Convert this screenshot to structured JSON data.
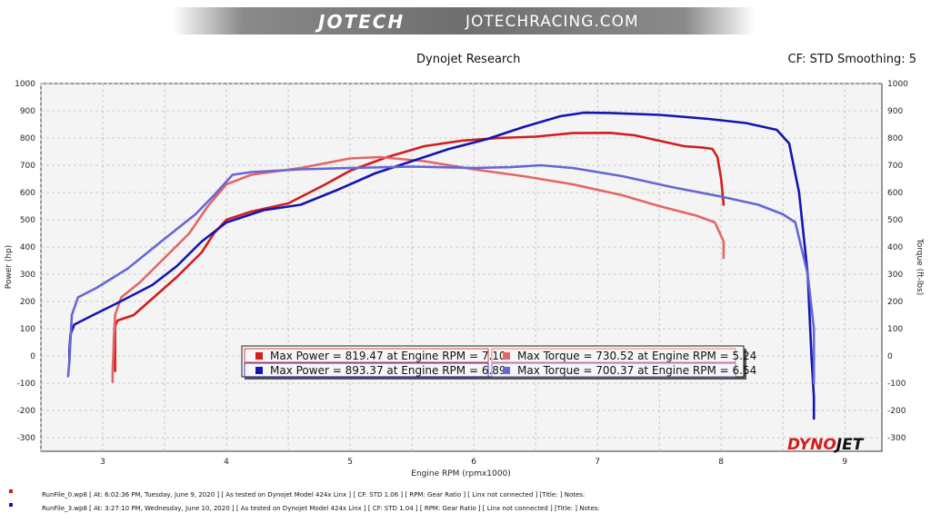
{
  "banner": {
    "logo": "JOTECH",
    "url": "JOTECHRACING.COM"
  },
  "header": {
    "title": "Dynojet Research",
    "cf": "CF: STD Smoothing: 5"
  },
  "brand_mark": {
    "a": "DYNO",
    "b": "JET"
  },
  "colors": {
    "power_0": "#d21d1d",
    "power_3": "#1414b4",
    "torque_0": "#e46666",
    "torque_3": "#6666d6"
  },
  "legend": [
    {
      "text": "Max Power = 819.47 at Engine RPM = 7.10",
      "color": "#d21d1d"
    },
    {
      "text": "Max Torque = 730.52 at Engine RPM = 5.24",
      "color": "#e46666"
    },
    {
      "text": "Max Power = 893.37 at Engine RPM = 6.89",
      "color": "#1414b4"
    },
    {
      "text": "Max Torque = 700.37 at Engine RPM = 6.54",
      "color": "#6666d6"
    }
  ],
  "footer": [
    {
      "text": "RunFile_0.wp8  [ At:  6:02:36 PM, Tuesday, June 9, 2020 ]  [ As tested on Dynojet Model 424x Linx ]  [ CF: STD 1.06 ]  [ RPM: Gear Ratio ]  [ Linx not connected ]  [Title: ]   Notes:",
      "color": "#d21d1d"
    },
    {
      "text": "RunFile_3.wp8  [ At:  3:27:10 PM, Wednesday, June 10, 2020 ]  [ As tested on Dynojet Model 424x Linx ]  [ CF: STD 1.04 ]  [ RPM: Gear Ratio ]  [ Linx not connected ]  [Title: ]   Notes:",
      "color": "#1414b4"
    }
  ],
  "chart_data": {
    "type": "line",
    "xlabel": "Engine RPM (rpmx1000)",
    "ylabel": "Power (hp)",
    "y2label": "Torque (ft-lbs)",
    "xlim": [
      2.5,
      9.3
    ],
    "ylim": [
      -350,
      1000
    ],
    "xticks": [
      3,
      4,
      5,
      6,
      7,
      8,
      9
    ],
    "yticks": [
      -300,
      -200,
      -100,
      0,
      100,
      200,
      300,
      400,
      500,
      600,
      700,
      800,
      900,
      1000
    ],
    "grid": true,
    "series": [
      {
        "key": "power_0",
        "points": [
          [
            3.1,
            -55
          ],
          [
            3.1,
            -30
          ],
          [
            3.1,
            60
          ],
          [
            3.1,
            110
          ],
          [
            3.12,
            130
          ],
          [
            3.25,
            150
          ],
          [
            3.4,
            210
          ],
          [
            3.6,
            290
          ],
          [
            3.8,
            380
          ],
          [
            3.9,
            450
          ],
          [
            4.0,
            500
          ],
          [
            4.2,
            530
          ],
          [
            4.5,
            560
          ],
          [
            4.8,
            630
          ],
          [
            5.0,
            680
          ],
          [
            5.3,
            730
          ],
          [
            5.6,
            770
          ],
          [
            5.9,
            790
          ],
          [
            6.2,
            800
          ],
          [
            6.5,
            805
          ],
          [
            6.8,
            818
          ],
          [
            7.1,
            819
          ],
          [
            7.3,
            810
          ],
          [
            7.5,
            790
          ],
          [
            7.7,
            770
          ],
          [
            7.85,
            765
          ],
          [
            7.93,
            760
          ],
          [
            7.97,
            730
          ],
          [
            8.0,
            650
          ],
          [
            8.02,
            555
          ]
        ]
      },
      {
        "key": "torque_0",
        "points": [
          [
            3.08,
            -95
          ],
          [
            3.08,
            -60
          ],
          [
            3.09,
            70
          ],
          [
            3.1,
            150
          ],
          [
            3.15,
            215
          ],
          [
            3.3,
            270
          ],
          [
            3.5,
            360
          ],
          [
            3.7,
            450
          ],
          [
            3.85,
            550
          ],
          [
            4.0,
            630
          ],
          [
            4.2,
            665
          ],
          [
            4.6,
            690
          ],
          [
            5.0,
            725
          ],
          [
            5.24,
            730
          ],
          [
            5.6,
            715
          ],
          [
            6.0,
            685
          ],
          [
            6.4,
            660
          ],
          [
            6.8,
            630
          ],
          [
            7.2,
            590
          ],
          [
            7.5,
            550
          ],
          [
            7.8,
            515
          ],
          [
            7.95,
            490
          ],
          [
            8.02,
            420
          ],
          [
            8.02,
            360
          ]
        ]
      },
      {
        "key": "power_3",
        "points": [
          [
            2.73,
            -25
          ],
          [
            2.73,
            20
          ],
          [
            2.74,
            80
          ],
          [
            2.77,
            115
          ],
          [
            2.9,
            145
          ],
          [
            3.1,
            190
          ],
          [
            3.4,
            260
          ],
          [
            3.6,
            330
          ],
          [
            3.8,
            420
          ],
          [
            4.0,
            490
          ],
          [
            4.3,
            535
          ],
          [
            4.6,
            555
          ],
          [
            4.9,
            610
          ],
          [
            5.2,
            670
          ],
          [
            5.5,
            715
          ],
          [
            5.8,
            760
          ],
          [
            6.1,
            795
          ],
          [
            6.4,
            840
          ],
          [
            6.7,
            880
          ],
          [
            6.89,
            893
          ],
          [
            7.1,
            892
          ],
          [
            7.5,
            885
          ],
          [
            7.9,
            870
          ],
          [
            8.2,
            855
          ],
          [
            8.45,
            830
          ],
          [
            8.55,
            780
          ],
          [
            8.63,
            600
          ],
          [
            8.7,
            300
          ],
          [
            8.73,
            0
          ],
          [
            8.75,
            -150
          ],
          [
            8.75,
            -230
          ]
        ]
      },
      {
        "key": "torque_3",
        "points": [
          [
            2.72,
            -75
          ],
          [
            2.73,
            -20
          ],
          [
            2.75,
            150
          ],
          [
            2.8,
            215
          ],
          [
            2.95,
            250
          ],
          [
            3.2,
            320
          ],
          [
            3.5,
            430
          ],
          [
            3.75,
            520
          ],
          [
            3.9,
            590
          ],
          [
            4.05,
            665
          ],
          [
            4.2,
            675
          ],
          [
            4.6,
            685
          ],
          [
            5.0,
            690
          ],
          [
            5.5,
            695
          ],
          [
            6.0,
            690
          ],
          [
            6.3,
            693
          ],
          [
            6.54,
            700
          ],
          [
            6.8,
            690
          ],
          [
            7.2,
            660
          ],
          [
            7.6,
            620
          ],
          [
            8.0,
            585
          ],
          [
            8.3,
            555
          ],
          [
            8.5,
            520
          ],
          [
            8.6,
            490
          ],
          [
            8.7,
            300
          ],
          [
            8.75,
            100
          ],
          [
            8.75,
            -100
          ]
        ]
      }
    ]
  }
}
